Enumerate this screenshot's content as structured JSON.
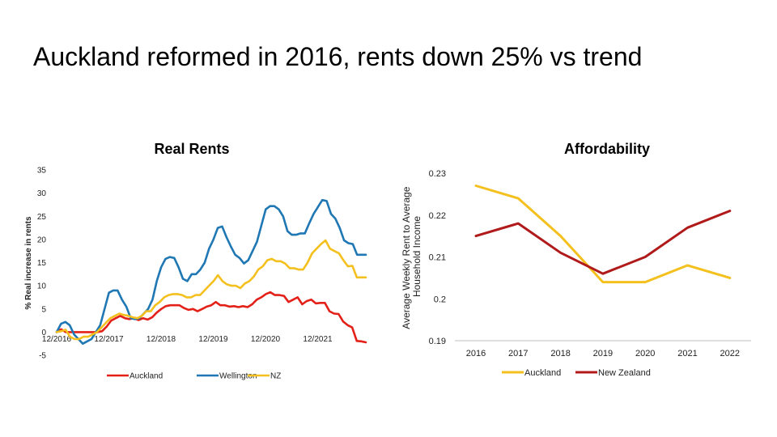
{
  "slide": {
    "title": "Auckland reformed in 2016, rents down 25% vs trend"
  },
  "chart_data": [
    {
      "type": "line",
      "title": "Real Rents",
      "ylabel": "% Real increase in rents",
      "xlabel": "",
      "ylim": [
        -5,
        35
      ],
      "yticks": [
        35,
        30,
        25,
        20,
        15,
        10,
        5,
        0,
        -5
      ],
      "xticks": [
        "12/2016",
        "12/2017",
        "12/2018",
        "12/2019",
        "12/2020",
        "12/2021"
      ],
      "x_start": "12/2016",
      "x_end": "12/2022",
      "grid": false,
      "legend_position": "bottom",
      "colors": {
        "Auckland": "#e32119",
        "Wellington": "#1f77b4",
        "NZ": "#f4c01e"
      },
      "series": [
        {
          "name": "Auckland",
          "values": [
            0,
            0.6,
            0,
            0,
            0,
            0,
            0,
            0,
            0,
            0,
            0.2,
            1.2,
            2.5,
            3,
            3.5,
            3,
            2.8,
            3,
            2.6,
            3,
            2.7,
            3.2,
            4.2,
            5,
            5.6,
            5.8,
            5.8,
            5.8,
            5.2,
            4.8,
            5,
            4.5,
            5,
            5.5,
            5.8,
            6.5,
            5.8,
            5.8,
            5.5,
            5.6,
            5.4,
            5.6,
            5.4,
            6,
            7,
            7.5,
            8.2,
            8.6,
            8,
            8,
            7.8,
            6.5,
            7,
            7.5,
            6,
            6.7,
            7,
            6.2,
            6.3,
            6.3,
            4.5,
            4,
            3.9,
            2.3,
            1.5,
            1,
            -1.9,
            -2,
            -2.2
          ]
        },
        {
          "name": "Wellington",
          "values": [
            0,
            1.8,
            2.2,
            1.5,
            -0.5,
            -1.5,
            -2.5,
            -2,
            -1.5,
            0,
            1.5,
            5,
            8.5,
            9,
            9,
            7,
            5.5,
            3,
            2.8,
            3,
            4,
            5,
            7,
            11,
            14,
            15.8,
            16.2,
            16,
            14,
            11.5,
            11,
            12.5,
            12.5,
            13.5,
            15,
            18,
            20,
            22.5,
            22.8,
            20.5,
            18.5,
            16.7,
            16,
            14.8,
            15.5,
            17.5,
            19.5,
            23,
            26.5,
            27.2,
            27.2,
            26.5,
            25,
            21.8,
            21,
            21,
            21.3,
            21.3,
            23.5,
            25.5,
            27,
            28.5,
            28.3,
            25.5,
            24.5,
            22.5,
            19.8,
            19.2,
            19,
            16.7,
            16.7,
            16.7
          ]
        },
        {
          "name": "NZ",
          "values": [
            0,
            0.2,
            0.5,
            -1,
            -1.5,
            -1.5,
            -1,
            -1,
            -0.5,
            0,
            1,
            2,
            3,
            3.5,
            4,
            3.7,
            3.5,
            3.2,
            3,
            3.5,
            4.5,
            4.5,
            5.8,
            6.5,
            7.5,
            8,
            8.2,
            8.2,
            8,
            7.5,
            7.5,
            8,
            8,
            9,
            10,
            11,
            12.3,
            11,
            10.3,
            10,
            10,
            9.5,
            10.5,
            11,
            12,
            13.5,
            14.2,
            15.5,
            15.8,
            15.3,
            15.3,
            14.8,
            13.8,
            13.8,
            13.5,
            13.5,
            15,
            17,
            18,
            19,
            19.8,
            18,
            17.5,
            17,
            15.5,
            14.2,
            14.3,
            11.8,
            11.8,
            11.8
          ]
        }
      ]
    },
    {
      "type": "line",
      "title": "Affordability",
      "ylabel": "Average Weekly Rent to Average Household Income",
      "ylabel_lines": [
        "Average Weekly Rent to Average",
        "Household Income"
      ],
      "xlabel": "",
      "categories": [
        "2016",
        "2017",
        "2018",
        "2019",
        "2020",
        "2021",
        "2022"
      ],
      "ylim": [
        0.19,
        0.23
      ],
      "yticks": [
        "0.23",
        "0.22",
        "0.21",
        "0.2",
        "0.19"
      ],
      "grid": false,
      "legend_position": "bottom",
      "colors": {
        "Auckland": "#f4c01e",
        "New Zealand": "#b01a1a"
      },
      "series": [
        {
          "name": "Auckland",
          "values": [
            0.227,
            0.224,
            0.215,
            0.204,
            0.204,
            0.208,
            0.205
          ]
        },
        {
          "name": "New Zealand",
          "values": [
            0.215,
            0.218,
            0.211,
            0.206,
            0.21,
            0.217,
            0.221
          ]
        }
      ]
    }
  ]
}
